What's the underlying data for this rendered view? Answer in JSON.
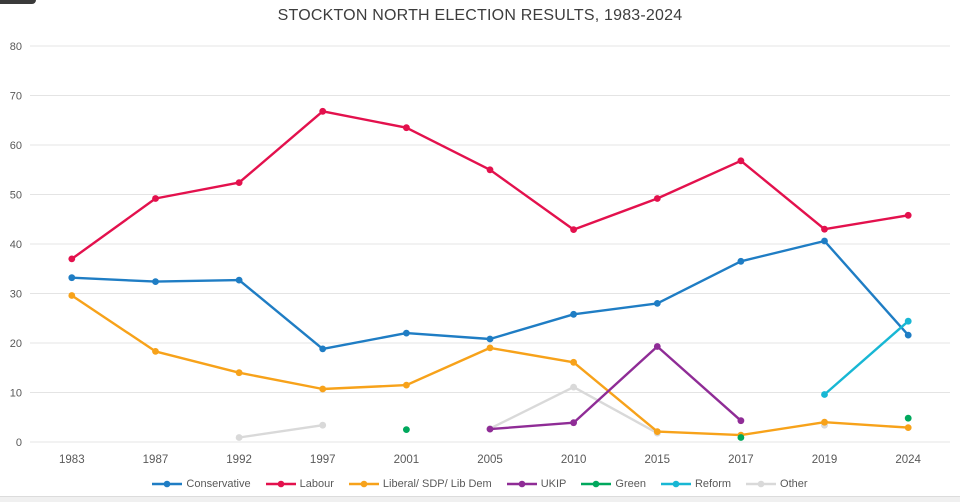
{
  "chart_data": {
    "type": "line",
    "title": "STOCKTON NORTH ELECTION RESULTS, 1983-2024",
    "categories": [
      "1983",
      "1987",
      "1992",
      "1997",
      "2001",
      "2005",
      "2010",
      "2015",
      "2017",
      "2019",
      "2024"
    ],
    "yticks": [
      0,
      10,
      20,
      30,
      40,
      50,
      60,
      70,
      80
    ],
    "ylim": [
      0,
      80
    ],
    "grid": true,
    "legend_position": "bottom",
    "series": [
      {
        "name": "Conservative",
        "color": "#1F7DC4",
        "values": [
          33.2,
          32.4,
          32.7,
          18.8,
          22.0,
          20.8,
          25.8,
          28.0,
          36.5,
          40.6,
          21.6
        ]
      },
      {
        "name": "Labour",
        "color": "#E3114D",
        "values": [
          37.0,
          49.2,
          52.4,
          66.8,
          63.5,
          55.0,
          42.9,
          49.2,
          56.8,
          43.0,
          45.8
        ]
      },
      {
        "name": "Liberal/ SDP/ Lib Dem",
        "color": "#F7A21A",
        "values": [
          29.6,
          18.3,
          14.0,
          10.7,
          11.5,
          19.0,
          16.1,
          2.1,
          1.4,
          4.0,
          2.9
        ]
      },
      {
        "name": "UKIP",
        "color": "#8F2C96",
        "values": [
          null,
          null,
          null,
          null,
          null,
          2.6,
          3.9,
          19.3,
          4.3,
          null,
          null
        ]
      },
      {
        "name": "Green",
        "color": "#00A85D",
        "values": [
          null,
          null,
          null,
          null,
          2.5,
          null,
          null,
          null,
          0.9,
          null,
          4.8
        ]
      },
      {
        "name": "Reform",
        "color": "#18B7D4",
        "values": [
          null,
          null,
          null,
          null,
          null,
          null,
          null,
          null,
          null,
          9.6,
          24.4
        ]
      },
      {
        "name": "Other",
        "color": "#D9D9D9",
        "values": [
          null,
          null,
          0.9,
          3.4,
          null,
          2.7,
          11.1,
          1.8,
          null,
          3.4,
          null
        ]
      }
    ],
    "draw_order": [
      6,
      0,
      1,
      2,
      3,
      4,
      5
    ]
  },
  "style": {
    "gridline_color": "#e4e4e4",
    "tick_label_color": "#595959",
    "title_color": "#3d3d3d"
  }
}
